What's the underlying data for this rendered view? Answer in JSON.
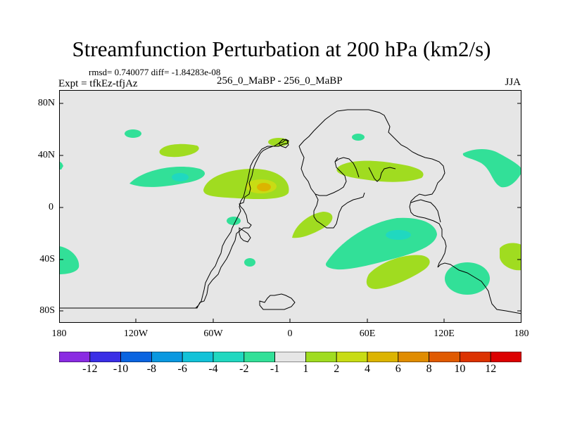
{
  "title": "Streamfunction Perturbation at 200 hPa (km2/s)",
  "stats": "rmsd= 0.740077 diff= -1.84283e-08",
  "expt": "Expt = tfkEz-tfjAz",
  "case": "256_0_MaBP - 256_0_MaBP",
  "season": "JJA",
  "map": {
    "background_color": "#e6e6e6",
    "lat_range": [
      -90,
      90
    ],
    "lon_range": [
      -180,
      180
    ],
    "y_ticks": [
      "80N",
      "40N",
      "0",
      "40S",
      "80S"
    ],
    "x_ticks": [
      "180",
      "120W",
      "60W",
      "0",
      "60E",
      "120E",
      "180"
    ]
  },
  "colorbar": {
    "colors": [
      "#8a2be2",
      "#3a2ee6",
      "#0a64e0",
      "#0a98e0",
      "#12c2d8",
      "#20d8c0",
      "#32e098",
      "#e6e6e6",
      "#a0dc20",
      "#c8dc14",
      "#dcb400",
      "#e08c00",
      "#e05a00",
      "#dc3200",
      "#dc0000"
    ],
    "labels": [
      "-12",
      "-10",
      "-8",
      "-6",
      "-4",
      "-2",
      "-1",
      "1",
      "2",
      "4",
      "6",
      "8",
      "10",
      "12"
    ]
  }
}
